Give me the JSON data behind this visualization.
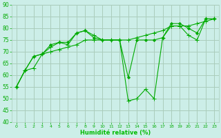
{
  "bg_color": "#cceee8",
  "grid_color": "#aaccbb",
  "line_color": "#00aa00",
  "marker_color": "#00aa00",
  "xlabel": "Humidité relative (%)",
  "xlabel_color": "#00bb00",
  "tick_color": "#00aa00",
  "ylim": [
    40,
    90
  ],
  "xlim": [
    -0.5,
    23.5
  ],
  "yticks": [
    40,
    45,
    50,
    55,
    60,
    65,
    70,
    75,
    80,
    85,
    90
  ],
  "xticks": [
    0,
    1,
    2,
    3,
    4,
    5,
    6,
    7,
    8,
    9,
    10,
    11,
    12,
    13,
    14,
    15,
    16,
    17,
    18,
    19,
    20,
    21,
    22,
    23
  ],
  "series": [
    [
      55,
      62,
      68,
      69,
      72,
      74,
      73,
      78,
      79,
      77,
      75,
      75,
      75,
      49,
      50,
      54,
      50,
      76,
      81,
      81,
      77,
      75,
      84,
      84
    ],
    [
      55,
      62,
      68,
      69,
      73,
      74,
      74,
      78,
      79,
      76,
      75,
      75,
      75,
      59,
      75,
      75,
      75,
      76,
      82,
      82,
      80,
      78,
      84,
      84
    ],
    [
      55,
      62,
      63,
      69,
      70,
      71,
      72,
      73,
      75,
      75,
      75,
      75,
      75,
      75,
      76,
      77,
      78,
      79,
      81,
      81,
      81,
      82,
      83,
      84
    ]
  ]
}
